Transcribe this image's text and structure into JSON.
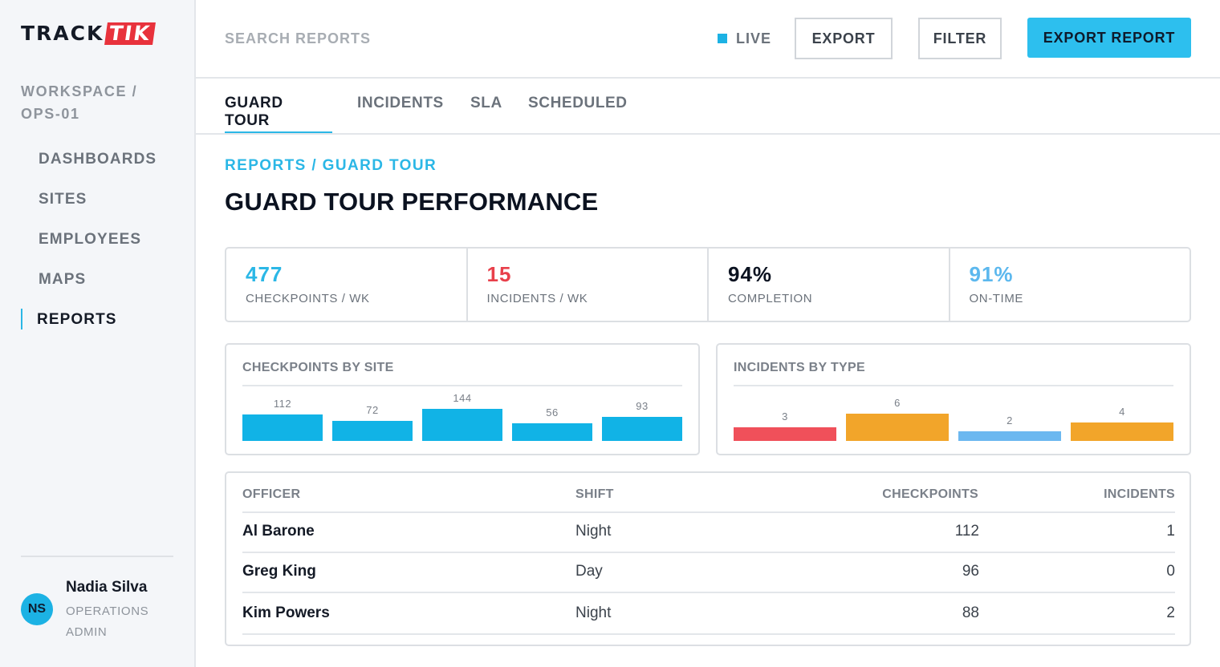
{
  "brand": {
    "logo_part1": "TRACK",
    "logo_part2": "TIK"
  },
  "sidebar": {
    "workspace": "WORKSPACE / OPS-01",
    "items": [
      {
        "label": "DASHBOARDS",
        "active": false
      },
      {
        "label": "SITES",
        "active": false
      },
      {
        "label": "EMPLOYEES",
        "active": false
      },
      {
        "label": "MAPS",
        "active": false
      },
      {
        "label": "REPORTS",
        "active": true
      }
    ],
    "user": {
      "initials": "NS",
      "name": "Nadia Silva",
      "role": "OPERATIONS ADMIN"
    }
  },
  "topbar": {
    "search_placeholder": "SEARCH REPORTS",
    "live_label": "LIVE",
    "export_label": "EXPORT",
    "filter_label": "FILTER",
    "export_report_label": "EXPORT REPORT"
  },
  "tabs": [
    {
      "label": "GUARD TOUR",
      "active": true
    },
    {
      "label": "INCIDENTS",
      "active": false
    },
    {
      "label": "SLA",
      "active": false
    },
    {
      "label": "SCHEDULED",
      "active": false
    }
  ],
  "main": {
    "breadcrumb": "REPORTS / GUARD TOUR",
    "title": "GUARD TOUR PERFORMANCE",
    "kpis": [
      {
        "value": "477",
        "label": "CHECKPOINTS / WK",
        "color": "#2bb7e6"
      },
      {
        "value": "15",
        "label": "INCIDENTS / WK",
        "color": "#e8404b"
      },
      {
        "value": "94%",
        "label": "COMPLETION",
        "color": "#0b1220"
      },
      {
        "value": "91%",
        "label": "ON-TIME",
        "color": "#5cb8ee"
      }
    ]
  },
  "chart_data": [
    {
      "type": "bar",
      "title": "CHECKPOINTS BY SITE",
      "values": [
        112,
        72,
        144,
        56,
        93
      ],
      "colors": [
        "#11b3e6",
        "#11b3e6",
        "#11b3e6",
        "#11b3e6",
        "#11b3e6"
      ],
      "ylim": [
        0,
        144
      ]
    },
    {
      "type": "bar",
      "title": "INCIDENTS BY TYPE",
      "values": [
        3,
        6,
        2,
        4
      ],
      "colors": [
        "#f0505a",
        "#f2a52a",
        "#6cb8f0",
        "#f2a52a"
      ],
      "ylim": [
        0,
        6
      ]
    }
  ],
  "table": {
    "headers": [
      "OFFICER",
      "SHIFT",
      "CHECKPOINTS",
      "INCIDENTS"
    ],
    "rows": [
      {
        "officer": "Al Barone",
        "shift": "Night",
        "checkpoints": "112",
        "incidents": "1"
      },
      {
        "officer": "Greg King",
        "shift": "Day",
        "checkpoints": "96",
        "incidents": "0"
      },
      {
        "officer": "Kim Powers",
        "shift": "Night",
        "checkpoints": "88",
        "incidents": "2"
      }
    ]
  }
}
